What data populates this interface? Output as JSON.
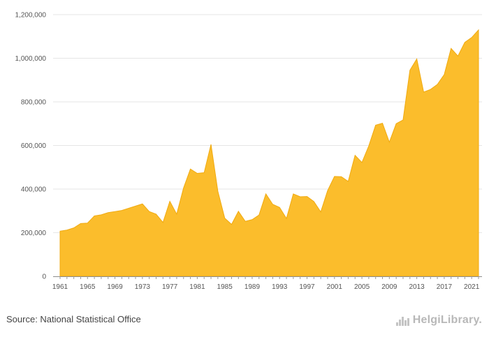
{
  "chart_data": {
    "type": "area",
    "title": "",
    "xlabel": "",
    "ylabel": "",
    "ylim": [
      0,
      1200000
    ],
    "yticks": [
      "0",
      "200,000",
      "400,000",
      "600,000",
      "800,000",
      "1,000,000",
      "1,200,000"
    ],
    "ytick_values": [
      0,
      200000,
      400000,
      600000,
      800000,
      1000000,
      1200000
    ],
    "xtick_years": [
      1961,
      1965,
      1969,
      1973,
      1977,
      1981,
      1985,
      1989,
      1993,
      1997,
      2001,
      2005,
      2009,
      2013,
      2017,
      2021
    ],
    "x": [
      1961,
      1962,
      1963,
      1964,
      1965,
      1966,
      1967,
      1968,
      1969,
      1970,
      1971,
      1972,
      1973,
      1974,
      1975,
      1976,
      1977,
      1978,
      1979,
      1980,
      1981,
      1982,
      1983,
      1984,
      1985,
      1986,
      1987,
      1988,
      1989,
      1990,
      1991,
      1992,
      1993,
      1994,
      1995,
      1996,
      1997,
      1998,
      1999,
      2000,
      2001,
      2002,
      2003,
      2004,
      2005,
      2006,
      2007,
      2008,
      2009,
      2010,
      2011,
      2012,
      2013,
      2014,
      2015,
      2016,
      2017,
      2018,
      2019,
      2020,
      2021,
      2022
    ],
    "values": [
      207000,
      212000,
      222000,
      242000,
      244000,
      277000,
      282000,
      292000,
      297000,
      302000,
      312000,
      322000,
      332000,
      297000,
      285000,
      247000,
      344000,
      285000,
      405000,
      492000,
      472000,
      475000,
      605000,
      390000,
      267000,
      238000,
      298000,
      252000,
      260000,
      281000,
      378000,
      330000,
      316000,
      265000,
      378000,
      365000,
      366000,
      343000,
      295000,
      393000,
      458000,
      457000,
      435000,
      555000,
      522000,
      598000,
      693000,
      702000,
      615000,
      700000,
      717000,
      945000,
      997000,
      845000,
      857000,
      880000,
      925000,
      1045000,
      1010000,
      1073000,
      1095000,
      1130000
    ],
    "grid": true,
    "color": "#fbbd2c",
    "edge_color": "#f0aa10"
  },
  "source_label": "Source: National Statistical Office",
  "logo_text": "HelgiLibrary.",
  "logo_icon": "helgi-library-logo-icon"
}
